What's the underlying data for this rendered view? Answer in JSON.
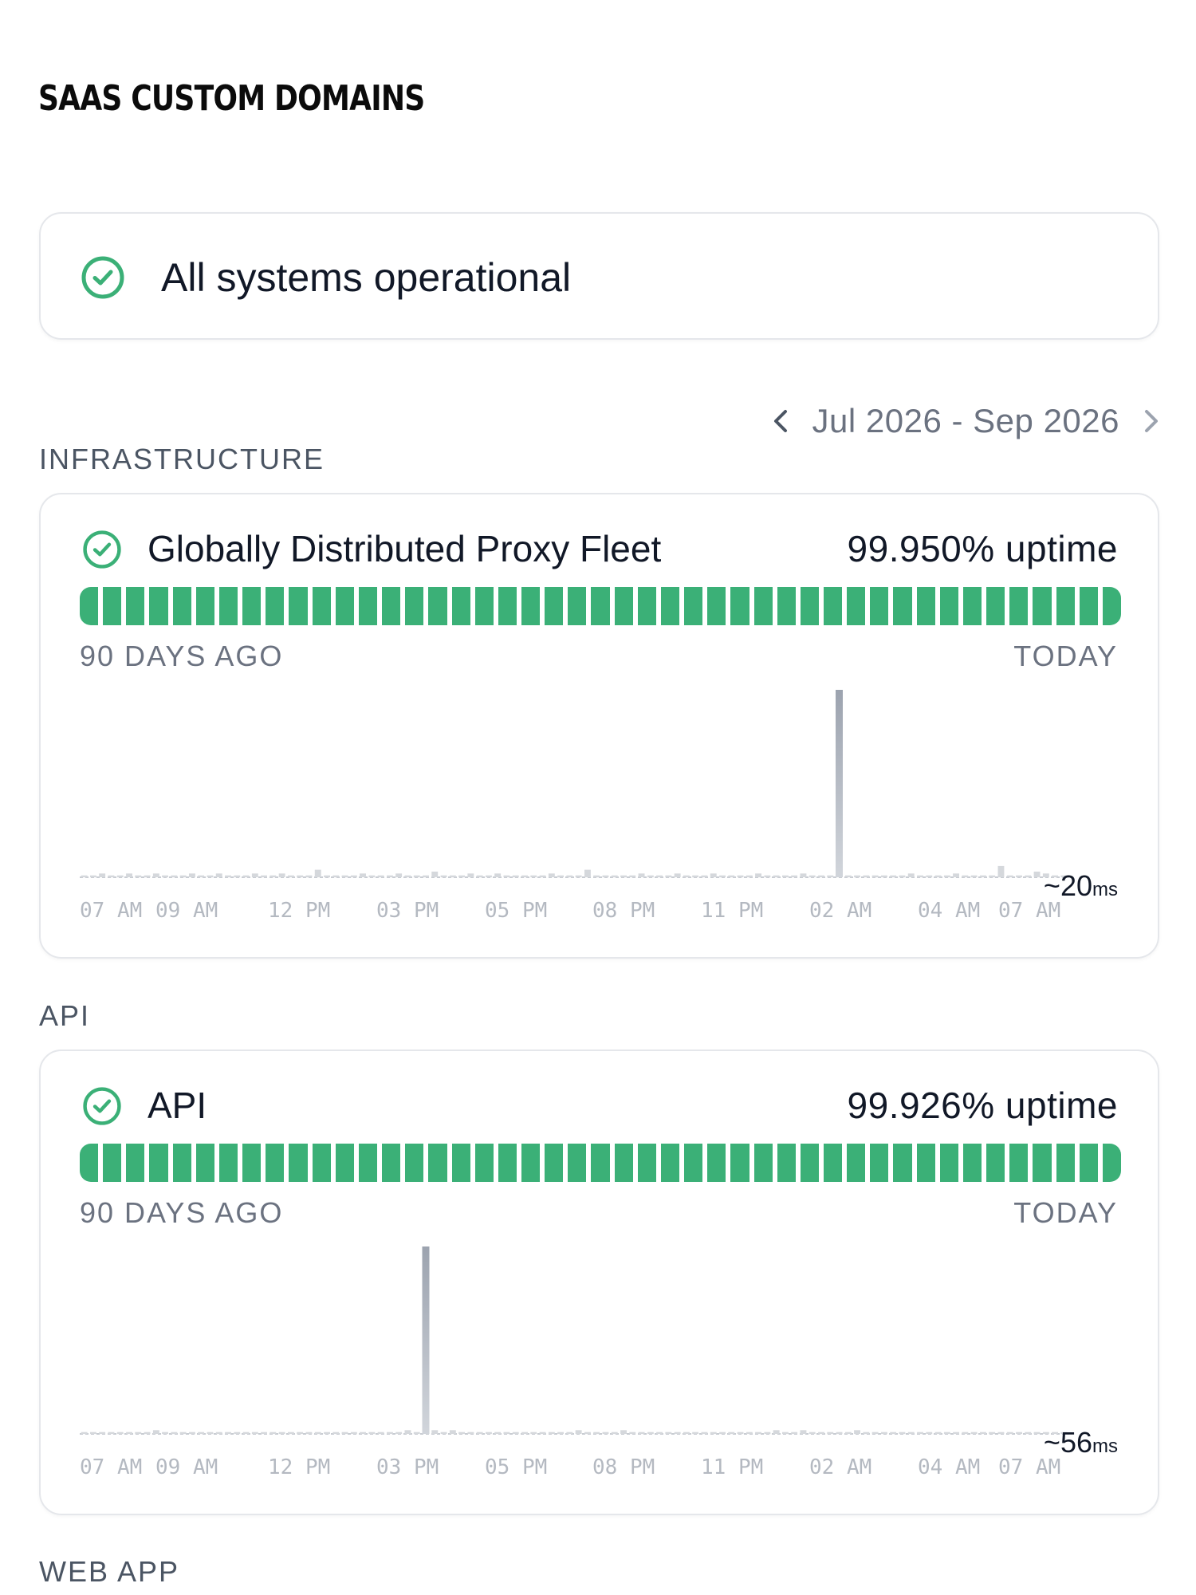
{
  "brand": "SAAS CUSTOM DOMAINS",
  "status": {
    "text": "All systems operational",
    "icon": "check-circle-icon",
    "color": "#3bb077"
  },
  "date_range": {
    "label": "Jul 2026 - Sep 2026",
    "prev_icon": "chevron-left-icon",
    "next_icon": "chevron-right-icon"
  },
  "sections": [
    {
      "label": "INFRASTRUCTURE",
      "component": {
        "name": "Globally Distributed Proxy Fleet",
        "uptime": "99.950% uptime",
        "ago_label": "90 DAYS AGO",
        "today_label": "TODAY",
        "bar_count": 45,
        "avg": "~20",
        "avg_unit": "ms",
        "time_labels": [
          "07 AM",
          "09 AM",
          "12 PM",
          "03 PM",
          "05 PM",
          "08 PM",
          "11 PM",
          "02 AM",
          "04 AM",
          "07 AM"
        ],
        "chart_data": {
          "type": "bar",
          "values": [
            1,
            1,
            2,
            1,
            1,
            2,
            1,
            1,
            2,
            1,
            1,
            1,
            2,
            1,
            1,
            2,
            1,
            1,
            1,
            2,
            1,
            1,
            2,
            1,
            1,
            1,
            4,
            1,
            1,
            1,
            1,
            2,
            1,
            1,
            1,
            2,
            1,
            1,
            1,
            3,
            1,
            1,
            1,
            2,
            1,
            1,
            2,
            1,
            1,
            1,
            1,
            1,
            2,
            1,
            1,
            1,
            4,
            1,
            1,
            1,
            1,
            1,
            2,
            1,
            1,
            1,
            2,
            1,
            1,
            1,
            2,
            1,
            1,
            1,
            1,
            2,
            1,
            1,
            1,
            1,
            2,
            1,
            1,
            1,
            100,
            1,
            1,
            1,
            1,
            1,
            1,
            1,
            2,
            1,
            1,
            1,
            1,
            2,
            1,
            1,
            1,
            1,
            6,
            1,
            1,
            1,
            3,
            2,
            1,
            1
          ],
          "ylim": [
            0,
            100
          ]
        }
      }
    },
    {
      "label": "API",
      "component": {
        "name": "API",
        "uptime": "99.926% uptime",
        "ago_label": "90 DAYS AGO",
        "today_label": "TODAY",
        "bar_count": 45,
        "avg": "~56",
        "avg_unit": "ms",
        "time_labels": [
          "07 AM",
          "09 AM",
          "12 PM",
          "03 PM",
          "05 PM",
          "08 PM",
          "11 PM",
          "02 AM",
          "04 AM",
          "07 AM"
        ],
        "chart_data": {
          "type": "bar",
          "values": [
            1,
            1,
            1,
            1,
            1,
            1,
            1,
            1,
            2,
            1,
            1,
            1,
            1,
            1,
            1,
            1,
            1,
            1,
            1,
            1,
            1,
            1,
            1,
            1,
            1,
            1,
            1,
            1,
            1,
            1,
            1,
            1,
            1,
            1,
            1,
            1,
            2,
            1,
            100,
            2,
            1,
            2,
            1,
            1,
            1,
            1,
            1,
            1,
            1,
            1,
            1,
            1,
            1,
            1,
            1,
            2,
            1,
            1,
            1,
            1,
            2,
            1,
            1,
            1,
            1,
            1,
            1,
            1,
            1,
            1,
            1,
            1,
            1,
            1,
            1,
            1,
            1,
            2,
            1,
            1,
            2,
            1,
            1,
            1,
            1,
            1,
            2,
            1,
            1,
            1,
            1,
            1,
            1,
            1,
            1,
            1,
            1,
            1,
            1,
            1,
            1,
            1,
            1,
            1,
            1,
            1,
            1,
            1,
            1,
            1
          ],
          "ylim": [
            0,
            100
          ]
        }
      }
    },
    {
      "label": "WEB APP"
    }
  ]
}
